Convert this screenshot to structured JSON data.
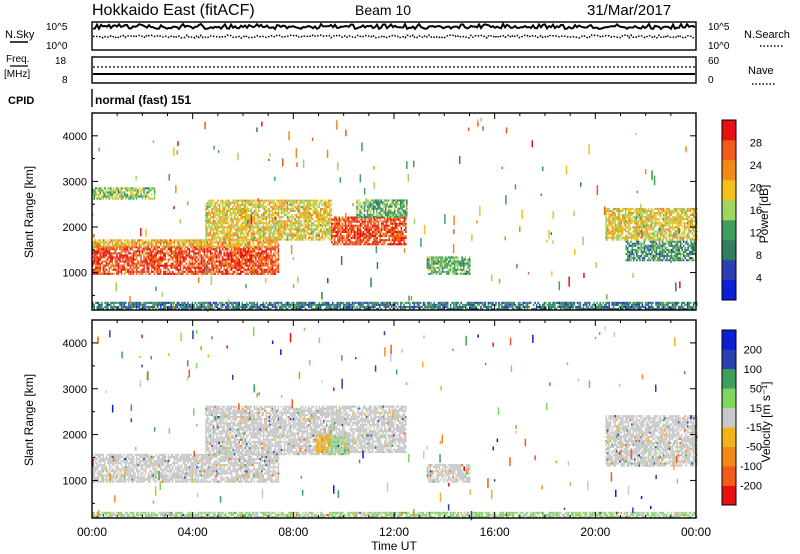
{
  "header": {
    "title": "Hokkaido East (fitACF)",
    "beam": "Beam 10",
    "date": "31/Mar/2017"
  },
  "top_panels": {
    "nsky": {
      "label": "N.Sky",
      "y_ticks": [
        "10^5",
        "10^0"
      ],
      "right_label": "N.Search",
      "right_ticks": [
        "10^5",
        "10^0"
      ]
    },
    "freq": {
      "label_line1": "Freq.",
      "label_line2": "[MHz]",
      "y_ticks": [
        "18",
        "8"
      ],
      "right_label": "Nave",
      "right_ticks": [
        "60",
        "0"
      ]
    },
    "cpid": {
      "label": "CPID",
      "value": "normal (fast) 151"
    }
  },
  "colors": {
    "power_scale": [
      "#0a1fd6",
      "#2a3fb0",
      "#2f7f5f",
      "#3f9f5f",
      "#9fd65f",
      "#f2c21a",
      "#f28a1a",
      "#f25a1a",
      "#e81010"
    ],
    "velocity_scale": [
      "#e81010",
      "#f25a1a",
      "#f28a1a",
      "#f2b21a",
      "#c8c8c8",
      "#7fd65f",
      "#3f9f5f",
      "#2a3fb0",
      "#0a1fd6"
    ]
  },
  "chart_data": [
    {
      "type": "heatmap",
      "name": "power",
      "title": "",
      "xlabel": "",
      "ylabel": "Slant Range [km]",
      "x_ticks": [
        "00:00",
        "04:00",
        "08:00",
        "12:00",
        "16:00",
        "20:00",
        "00:00"
      ],
      "x_range_hours": [
        0,
        24
      ],
      "y_ticks": [
        "1000",
        "2000",
        "3000",
        "4000"
      ],
      "y_range_km": [
        180,
        4500
      ],
      "colorbar": {
        "label": "Power [dB]",
        "ticks": [
          "4",
          "8",
          "12",
          "16",
          "20",
          "24",
          "28"
        ],
        "range": [
          0,
          30
        ]
      },
      "regions": [
        {
          "t0": 0.0,
          "t1": 7.4,
          "r0": 950,
          "r1": 1550,
          "value": 26
        },
        {
          "t0": 0.0,
          "t1": 7.4,
          "r0": 1550,
          "r1": 1700,
          "value": 20
        },
        {
          "t0": 4.5,
          "t1": 9.5,
          "r0": 1700,
          "r1": 2600,
          "value": 18
        },
        {
          "t0": 9.5,
          "t1": 12.5,
          "r0": 1600,
          "r1": 2200,
          "value": 26
        },
        {
          "t0": 10.5,
          "t1": 12.5,
          "r0": 2200,
          "r1": 2600,
          "value": 12
        },
        {
          "t0": 0.0,
          "t1": 2.5,
          "r0": 2600,
          "r1": 2850,
          "value": 14
        },
        {
          "t0": 13.3,
          "t1": 15.0,
          "r0": 950,
          "r1": 1350,
          "value": 12
        },
        {
          "t0": 20.4,
          "t1": 24.0,
          "r0": 1700,
          "r1": 2400,
          "value": 18
        },
        {
          "t0": 21.2,
          "t1": 24.0,
          "r0": 1250,
          "r1": 1700,
          "value": 10
        },
        {
          "t0": 0.0,
          "t1": 24.0,
          "r0": 180,
          "r1": 320,
          "value": 8
        }
      ]
    },
    {
      "type": "heatmap",
      "name": "velocity",
      "title": "",
      "xlabel": "Time UT",
      "ylabel": "Slant Range [km]",
      "x_ticks": [
        "00:00",
        "04:00",
        "08:00",
        "12:00",
        "16:00",
        "20:00",
        "00:00"
      ],
      "x_range_hours": [
        0,
        24
      ],
      "y_ticks": [
        "1000",
        "2000",
        "3000",
        "4000"
      ],
      "y_range_km": [
        180,
        4500
      ],
      "colorbar": {
        "label": "Velocity [m s⁻¹]",
        "ticks": [
          "-200",
          "-100",
          "-50",
          "-15",
          "15",
          "50",
          "100",
          "200"
        ],
        "range": [
          -250,
          250
        ]
      },
      "regions": [
        {
          "t0": 0.0,
          "t1": 7.4,
          "r0": 950,
          "r1": 1550,
          "value": 0
        },
        {
          "t0": 4.5,
          "t1": 9.5,
          "r0": 1550,
          "r1": 2600,
          "value": 0
        },
        {
          "t0": 9.5,
          "t1": 12.5,
          "r0": 1600,
          "r1": 2600,
          "value": 0
        },
        {
          "t0": 9.4,
          "t1": 10.2,
          "r0": 1550,
          "r1": 2000,
          "value": 30
        },
        {
          "t0": 8.9,
          "t1": 9.4,
          "r0": 1600,
          "r1": 2000,
          "value": -40
        },
        {
          "t0": 13.3,
          "t1": 15.0,
          "r0": 950,
          "r1": 1350,
          "value": 0
        },
        {
          "t0": 20.4,
          "t1": 24.0,
          "r0": 1300,
          "r1": 2400,
          "value": 0
        },
        {
          "t0": 0.0,
          "t1": 24.0,
          "r0": 180,
          "r1": 300,
          "value": 30
        }
      ]
    }
  ]
}
